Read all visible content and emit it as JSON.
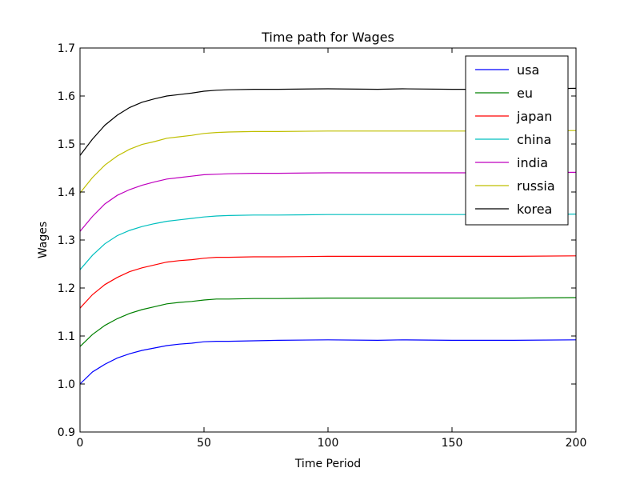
{
  "chart_data": {
    "type": "line",
    "title": "Time path for Wages",
    "xlabel": "Time Period",
    "ylabel": "Wages",
    "xlim": [
      0,
      200
    ],
    "ylim": [
      0.9,
      1.7
    ],
    "x_ticks": [
      0,
      50,
      100,
      150,
      200
    ],
    "x_tick_labels": [
      "0",
      "50",
      "100",
      "150",
      "200"
    ],
    "y_ticks": [
      0.9,
      1.0,
      1.1,
      1.2,
      1.3,
      1.4,
      1.5,
      1.6,
      1.7
    ],
    "y_tick_labels": [
      "0.9",
      "1.0",
      "1.1",
      "1.2",
      "1.3",
      "1.4",
      "1.5",
      "1.6",
      "1.7"
    ],
    "grid": false,
    "legend_position": "top-right",
    "x": [
      0,
      5,
      10,
      15,
      20,
      25,
      30,
      35,
      40,
      45,
      50,
      55,
      60,
      70,
      80,
      100,
      120,
      130,
      150,
      175,
      200
    ],
    "series": [
      {
        "name": "usa",
        "color": "#0000ff",
        "values": [
          1.0,
          1.025,
          1.041,
          1.054,
          1.063,
          1.07,
          1.075,
          1.08,
          1.083,
          1.085,
          1.088,
          1.089,
          1.089,
          1.09,
          1.091,
          1.092,
          1.091,
          1.092,
          1.091,
          1.091,
          1.092
        ]
      },
      {
        "name": "eu",
        "color": "#008000",
        "values": [
          1.078,
          1.103,
          1.122,
          1.136,
          1.147,
          1.155,
          1.161,
          1.167,
          1.17,
          1.172,
          1.175,
          1.177,
          1.177,
          1.178,
          1.178,
          1.179,
          1.179,
          1.179,
          1.179,
          1.179,
          1.18
        ]
      },
      {
        "name": "japan",
        "color": "#ff0000",
        "values": [
          1.158,
          1.186,
          1.207,
          1.222,
          1.234,
          1.242,
          1.248,
          1.254,
          1.257,
          1.259,
          1.262,
          1.264,
          1.264,
          1.265,
          1.265,
          1.266,
          1.266,
          1.266,
          1.266,
          1.266,
          1.267
        ]
      },
      {
        "name": "china",
        "color": "#00bfbf",
        "values": [
          1.238,
          1.268,
          1.292,
          1.309,
          1.32,
          1.328,
          1.334,
          1.339,
          1.342,
          1.345,
          1.348,
          1.35,
          1.351,
          1.352,
          1.352,
          1.353,
          1.353,
          1.353,
          1.353,
          1.353,
          1.354
        ]
      },
      {
        "name": "india",
        "color": "#bf00bf",
        "values": [
          1.318,
          1.349,
          1.375,
          1.393,
          1.405,
          1.414,
          1.421,
          1.427,
          1.43,
          1.433,
          1.436,
          1.437,
          1.438,
          1.439,
          1.439,
          1.44,
          1.44,
          1.44,
          1.44,
          1.44,
          1.441
        ]
      },
      {
        "name": "russia",
        "color": "#bfbf00",
        "values": [
          1.398,
          1.43,
          1.456,
          1.475,
          1.489,
          1.499,
          1.505,
          1.512,
          1.515,
          1.518,
          1.522,
          1.524,
          1.525,
          1.526,
          1.526,
          1.527,
          1.527,
          1.527,
          1.527,
          1.527,
          1.528
        ]
      },
      {
        "name": "korea",
        "color": "#000000",
        "values": [
          1.476,
          1.51,
          1.539,
          1.56,
          1.576,
          1.587,
          1.594,
          1.6,
          1.603,
          1.606,
          1.61,
          1.612,
          1.613,
          1.614,
          1.614,
          1.615,
          1.614,
          1.615,
          1.614,
          1.614,
          1.616
        ]
      }
    ]
  }
}
